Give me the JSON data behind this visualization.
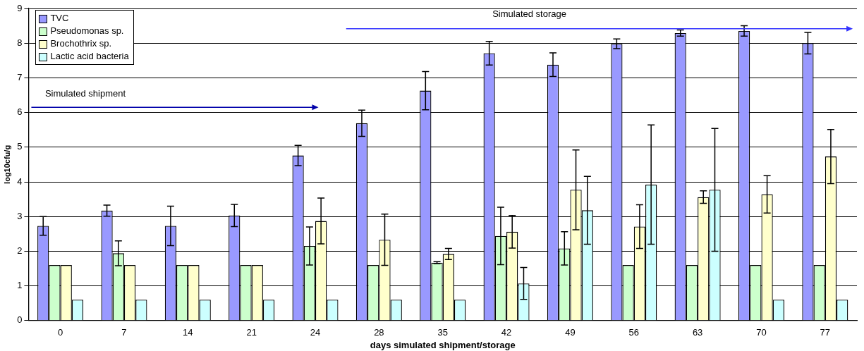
{
  "chart_data": {
    "type": "bar",
    "xlabel": "days simulated shipment/storage",
    "ylabel": "log10cfu/g",
    "categories": [
      "0",
      "7",
      "14",
      "21",
      "24",
      "28",
      "35",
      "42",
      "49",
      "56",
      "63",
      "70",
      "77"
    ],
    "series": [
      {
        "name": "TVC",
        "color": "#9999ff",
        "values": [
          2.73,
          3.17,
          2.73,
          3.03,
          4.76,
          5.69,
          6.63,
          7.71,
          7.38,
          7.98,
          8.29,
          8.35,
          8.0
        ],
        "errors": [
          0.27,
          0.16,
          0.57,
          0.32,
          0.29,
          0.38,
          0.55,
          0.34,
          0.34,
          0.14,
          0.09,
          0.15,
          0.31
        ]
      },
      {
        "name": "Pseudomonas sp.",
        "color": "#ccffcc",
        "values": [
          1.6,
          1.94,
          1.6,
          1.6,
          2.15,
          1.6,
          1.67,
          2.44,
          2.08,
          1.6,
          1.6,
          1.6,
          1.6
        ],
        "errors": [
          null,
          0.36,
          null,
          null,
          0.55,
          null,
          0.03,
          0.83,
          0.48,
          null,
          null,
          null,
          null
        ]
      },
      {
        "name": "Brochothrix sp.",
        "color": "#ffffcc",
        "values": [
          1.6,
          1.6,
          1.6,
          1.6,
          2.87,
          2.33,
          1.92,
          2.56,
          3.77,
          2.71,
          3.56,
          3.64,
          4.73
        ],
        "errors": [
          null,
          null,
          null,
          null,
          0.66,
          0.74,
          0.16,
          0.47,
          1.15,
          0.63,
          0.18,
          0.54,
          0.78
        ]
      },
      {
        "name": "Lactic acid bacteria",
        "color": "#ccffff",
        "values": [
          0.6,
          0.6,
          0.6,
          0.6,
          0.6,
          0.6,
          0.6,
          1.07,
          3.18,
          3.92,
          3.77,
          0.6,
          0.6
        ],
        "errors": [
          null,
          null,
          null,
          null,
          null,
          null,
          null,
          0.46,
          0.98,
          1.72,
          1.77,
          null,
          null
        ]
      }
    ],
    "ylim": [
      0,
      9
    ],
    "yticks": [
      0,
      1,
      2,
      3,
      4,
      5,
      6,
      7,
      8,
      9
    ],
    "grid": "y",
    "legend": "top left",
    "annotations": [
      "Simulated shipment",
      "Simulated storage"
    ]
  }
}
